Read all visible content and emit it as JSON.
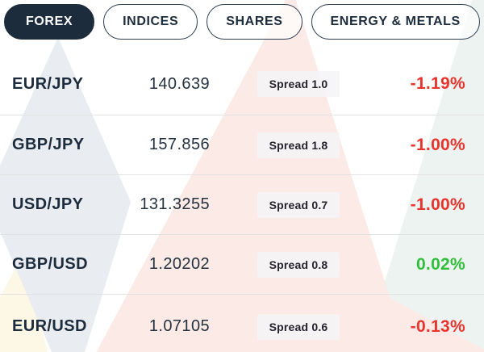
{
  "tabs": [
    {
      "label": "FOREX",
      "active": true
    },
    {
      "label": "INDICES",
      "active": false
    },
    {
      "label": "SHARES",
      "active": false
    },
    {
      "label": "ENERGY & METALS",
      "active": false
    }
  ],
  "table": {
    "rows": [
      {
        "pair": "EUR/JPY",
        "price": "140.639",
        "spread": "Spread 1.0",
        "change": "-1.19%",
        "direction": "down"
      },
      {
        "pair": "GBP/JPY",
        "price": "157.856",
        "spread": "Spread 1.8",
        "change": "-1.00%",
        "direction": "down"
      },
      {
        "pair": "USD/JPY",
        "price": "131.3255",
        "spread": "Spread 0.7",
        "change": "-1.00%",
        "direction": "down"
      },
      {
        "pair": "GBP/USD",
        "price": "1.20202",
        "spread": "Spread 0.8",
        "change": "0.02%",
        "direction": "up"
      },
      {
        "pair": "EUR/USD",
        "price": "1.07105",
        "spread": "Spread 0.6",
        "change": "-0.13%",
        "direction": "down"
      }
    ]
  },
  "colors": {
    "navy": "#1d2c3d",
    "navy_border": "#2c3b50",
    "negative": "#e7342d",
    "positive": "#2fbf3b",
    "pink_triangle": "#fbeae5",
    "mint_triangle": "#edf3f0",
    "gray_triangle": "#e9edf1",
    "yellow_triangle": "#fdf8e6"
  }
}
